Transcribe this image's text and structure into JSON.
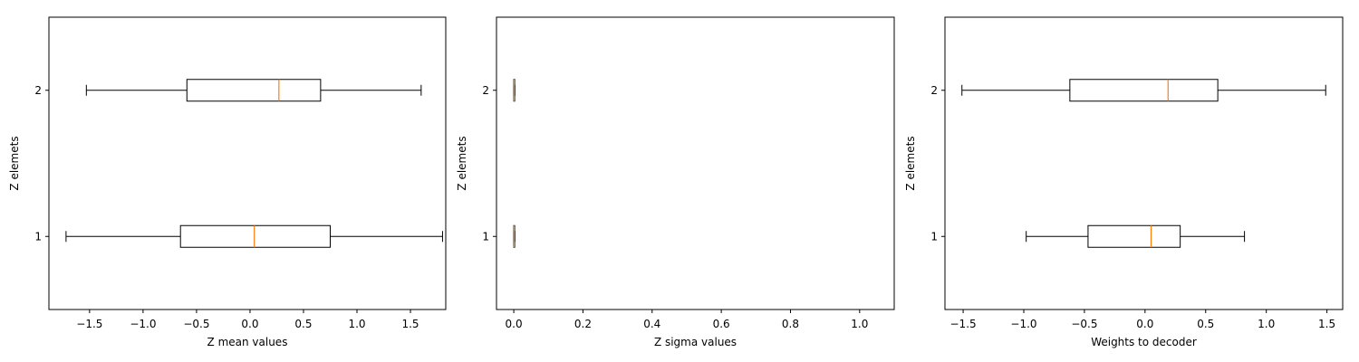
{
  "chart_data": [
    {
      "type": "boxplot",
      "orientation": "horizontal",
      "xlabel": "Z mean values",
      "ylabel": "Z elemets",
      "xlim": [
        -1.88,
        1.83
      ],
      "ylim": [
        0.5,
        2.5
      ],
      "xticks": [
        -1.5,
        -1.0,
        -0.5,
        0.0,
        0.5,
        1.0,
        1.5
      ],
      "xtick_labels": [
        "−1.5",
        "−1.0",
        "−0.5",
        "0.0",
        "0.5",
        "1.0",
        "1.5"
      ],
      "categories": [
        "1",
        "2"
      ],
      "boxes": [
        {
          "category": "1",
          "whisker_low": -1.72,
          "q1": -0.65,
          "median": 0.04,
          "q3": 0.75,
          "whisker_high": 1.8
        },
        {
          "category": "2",
          "whisker_low": -1.53,
          "q1": -0.59,
          "median": 0.27,
          "q3": 0.66,
          "whisker_high": 1.6
        }
      ],
      "grid": false
    },
    {
      "type": "boxplot",
      "orientation": "horizontal",
      "xlabel": "Z sigma values",
      "ylabel": "Z elemets",
      "xlim": [
        -0.05,
        1.1
      ],
      "ylim": [
        0.5,
        2.5
      ],
      "xticks": [
        0.0,
        0.2,
        0.4,
        0.6,
        0.8,
        1.0
      ],
      "xtick_labels": [
        "0.0",
        "0.2",
        "0.4",
        "0.6",
        "0.8",
        "1.0"
      ],
      "categories": [
        "1",
        "2"
      ],
      "boxes": [
        {
          "category": "1",
          "whisker_low": 0.0,
          "q1": 0.0,
          "median": 0.001,
          "q3": 0.002,
          "whisker_high": 0.003
        },
        {
          "category": "2",
          "whisker_low": 0.0,
          "q1": 0.0,
          "median": 0.001,
          "q3": 0.002,
          "whisker_high": 0.003
        }
      ],
      "grid": false
    },
    {
      "type": "boxplot",
      "orientation": "horizontal",
      "xlabel": "Weights to decoder",
      "ylabel": "Z elemets",
      "xlim": [
        -1.65,
        1.63
      ],
      "ylim": [
        0.5,
        2.5
      ],
      "xticks": [
        -1.5,
        -1.0,
        -0.5,
        0.0,
        0.5,
        1.0,
        1.5
      ],
      "xtick_labels": [
        "−1.5",
        "−1.0",
        "−0.5",
        "0.0",
        "0.5",
        "1.0",
        "1.5"
      ],
      "categories": [
        "1",
        "2"
      ],
      "boxes": [
        {
          "category": "1",
          "whisker_low": -0.98,
          "q1": -0.47,
          "median": 0.05,
          "q3": 0.29,
          "whisker_high": 0.82
        },
        {
          "category": "2",
          "whisker_low": -1.51,
          "q1": -0.62,
          "median": 0.19,
          "q3": 0.6,
          "whisker_high": 1.49
        }
      ],
      "grid": false
    }
  ],
  "colors": {
    "box": "#000000",
    "median": "#ff7f0e",
    "background": "#ffffff"
  }
}
